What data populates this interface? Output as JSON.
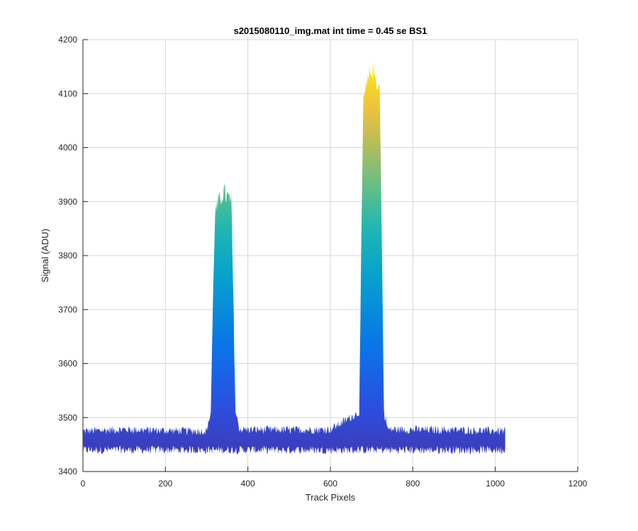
{
  "chart_data": {
    "type": "area",
    "title": "s2015080110_img.mat int time = 0.45 se   BS1",
    "xlabel": "Track Pixels",
    "ylabel": "Signal (ADU)",
    "xlim": [
      0,
      1200
    ],
    "ylim": [
      3400,
      4200
    ],
    "xticks": [
      0,
      200,
      400,
      600,
      800,
      1000,
      1200
    ],
    "yticks": [
      3400,
      3500,
      3600,
      3700,
      3800,
      3900,
      4000,
      4100,
      4200
    ],
    "grid": true,
    "colormap": "parula (signal-height coloured)",
    "baseline": {
      "x_range": [
        1,
        1024
      ],
      "low": 3440,
      "high": 3475
    },
    "series": [
      {
        "x": [
          1,
          100,
          200,
          300,
          310,
          320,
          340,
          360,
          370,
          380,
          500,
          600,
          670,
          680,
          700,
          720,
          730,
          740,
          900,
          1024
        ],
        "y": [
          3475,
          3478,
          3476,
          3475,
          3510,
          3870,
          3910,
          3890,
          3510,
          3478,
          3477,
          3478,
          3510,
          4080,
          4140,
          4100,
          3510,
          3478,
          3477,
          3475
        ]
      }
    ]
  }
}
